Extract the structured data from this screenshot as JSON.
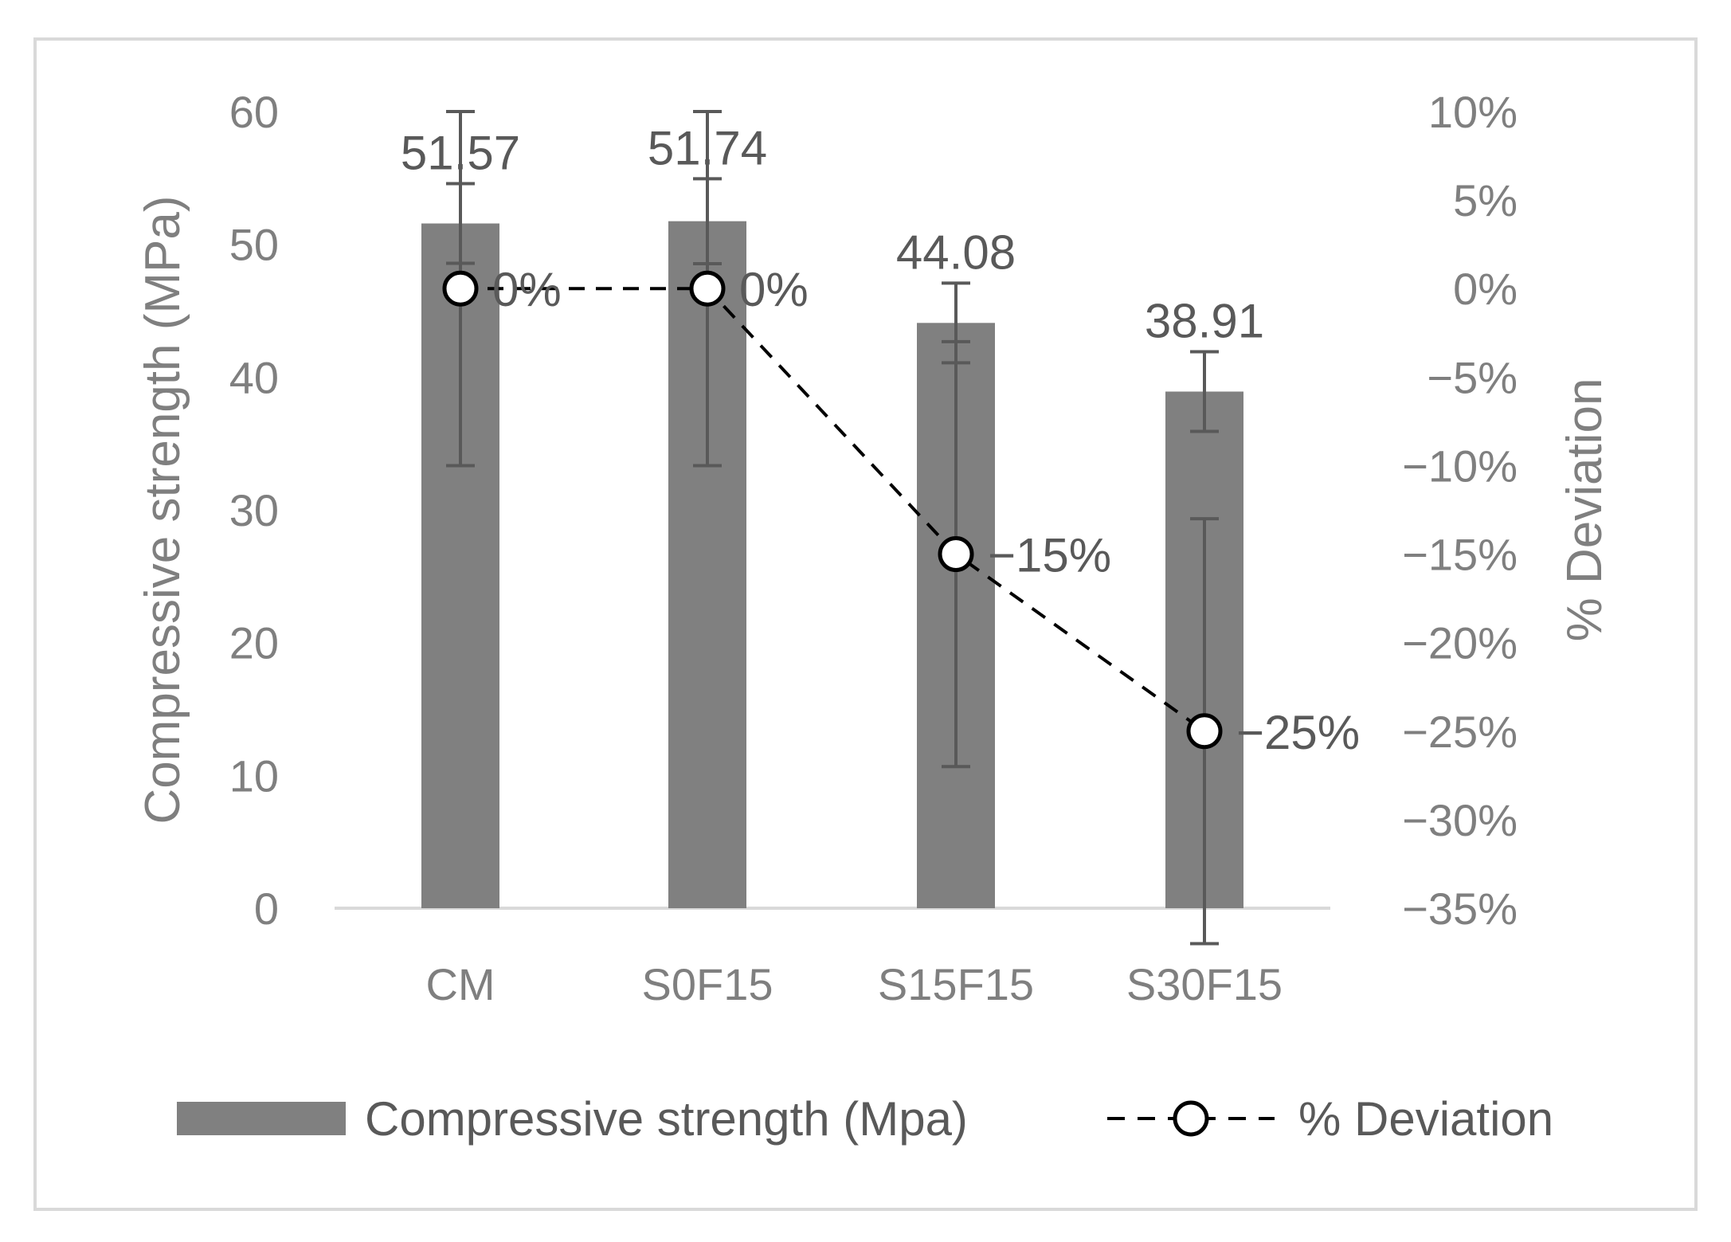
{
  "chart_data": {
    "type": "bar",
    "categories": [
      "CM",
      "S0F15",
      "S15F15",
      "S30F15"
    ],
    "series": [
      {
        "name": "Compressive strength (Mpa)",
        "type": "bar",
        "axis": "left",
        "values": [
          51.57,
          51.74,
          44.08,
          38.91
        ],
        "error": [
          3.0,
          3.2,
          3.0,
          3.0
        ],
        "labels": [
          "51.57",
          "51.74",
          "44.08",
          "38.91"
        ],
        "color": "#808080"
      },
      {
        "name": "% Deviation",
        "type": "line",
        "axis": "right",
        "values": [
          0,
          0,
          -15,
          -25
        ],
        "error": [
          10,
          10,
          12,
          12
        ],
        "labels": [
          "0%",
          "0%",
          "−15%",
          "−25%"
        ],
        "color": "#000000"
      }
    ],
    "ylabel": "Compressive strength (MPa)",
    "y2label": "% Deviation",
    "ylim": [
      0,
      60
    ],
    "yticks": [
      0,
      10,
      20,
      30,
      40,
      50,
      60
    ],
    "ytick_labels": [
      "0",
      "10",
      "20",
      "30",
      "40",
      "50",
      "60"
    ],
    "y2lim": [
      -35,
      10
    ],
    "y2ticks": [
      10,
      5,
      0,
      -5,
      -10,
      -15,
      -20,
      -25,
      -30,
      -35
    ],
    "y2tick_labels": [
      "10%",
      "5%",
      "0%",
      "−5%",
      "−10%",
      "−15%",
      "−20%",
      "−25%",
      "−30%",
      "−35%"
    ],
    "grid": false,
    "legend_position": "bottom"
  }
}
